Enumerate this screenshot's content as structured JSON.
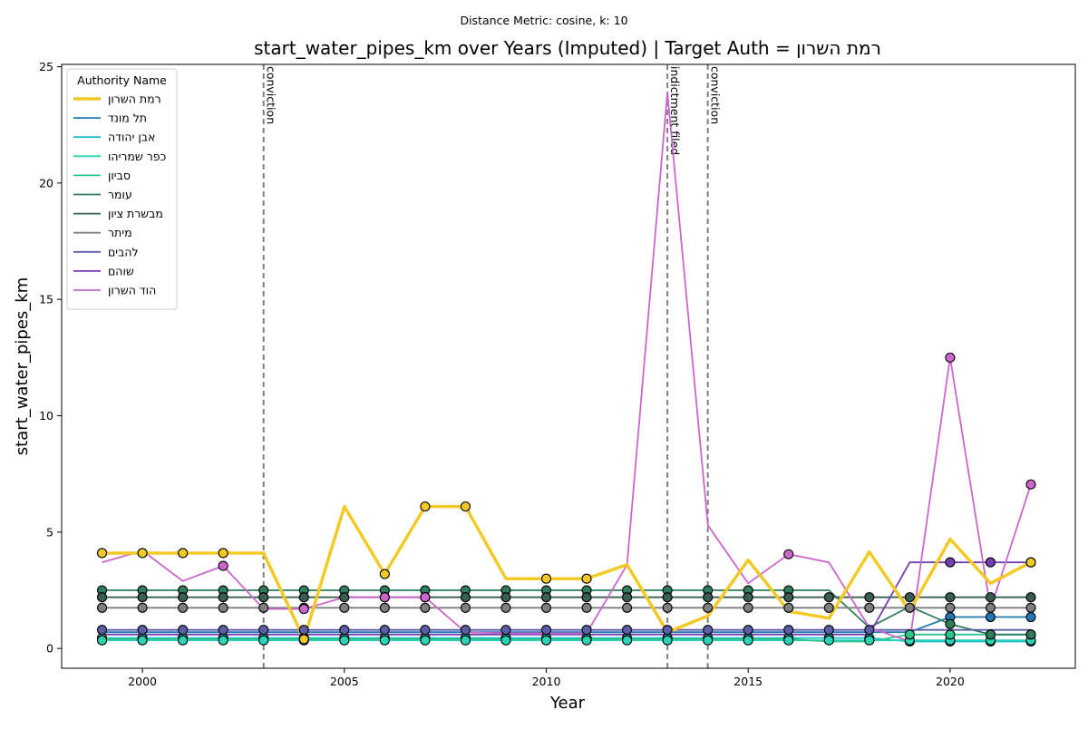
{
  "chart_data": {
    "type": "line",
    "supertitle": "Distance Metric: cosine, k: 10",
    "title": "start_water_pipes_km over Years (Imputed) | Target Auth = רמת השרון",
    "xlabel": "Year",
    "ylabel": "start_water_pipes_km",
    "xlim": [
      1998,
      2023.1
    ],
    "ylim": [
      -0.85,
      25.1
    ],
    "xticks": [
      2000,
      2005,
      2010,
      2015,
      2020
    ],
    "yticks": [
      0,
      5,
      10,
      15,
      20,
      25
    ],
    "grid": false,
    "legend": {
      "title": "Authority Name",
      "position": "upper left"
    },
    "x": [
      1999,
      2000,
      2001,
      2002,
      2003,
      2004,
      2005,
      2006,
      2007,
      2008,
      2009,
      2010,
      2011,
      2012,
      2013,
      2014,
      2015,
      2016,
      2017,
      2018,
      2019,
      2020,
      2021,
      2022
    ],
    "events": [
      {
        "x": 2003,
        "label": "conviction"
      },
      {
        "x": 2013,
        "label": "indictment filed"
      },
      {
        "x": 2014,
        "label": "conviction"
      }
    ],
    "series": [
      {
        "name": "רמת השרון",
        "color": "#f2c925",
        "target": true,
        "values": [
          4.1,
          4.1,
          4.1,
          4.1,
          4.1,
          0.4,
          6.1,
          3.2,
          6.1,
          6.1,
          3.0,
          3.0,
          3.0,
          3.6,
          0.7,
          1.4,
          3.8,
          1.6,
          1.3,
          4.15,
          1.6,
          4.7,
          2.8,
          3.7
        ],
        "markers": [
          1999,
          2000,
          2001,
          2002,
          2004,
          2006,
          2007,
          2008,
          2010,
          2011,
          2022
        ]
      },
      {
        "name": "תל מונד",
        "color": "#1f77b4",
        "values": [
          0.7,
          0.7,
          0.7,
          0.7,
          0.7,
          0.7,
          0.7,
          0.7,
          0.7,
          0.7,
          0.7,
          0.7,
          0.7,
          0.7,
          0.7,
          0.7,
          0.7,
          0.7,
          0.7,
          0.7,
          0.7,
          1.35,
          1.35,
          1.35
        ],
        "markers": [
          2020,
          2021,
          2022
        ]
      },
      {
        "name": "אבן יהודה",
        "color": "#17becf",
        "values": [
          0.45,
          0.45,
          0.45,
          0.45,
          0.45,
          0.45,
          0.45,
          0.45,
          0.45,
          0.45,
          0.45,
          0.45,
          0.45,
          0.45,
          0.45,
          0.45,
          0.45,
          0.45,
          0.45,
          0.45,
          0.3,
          0.3,
          0.3,
          0.3
        ],
        "markers": [
          1999,
          2000,
          2001,
          2002,
          2003,
          2004,
          2005,
          2006,
          2007,
          2008,
          2009,
          2010,
          2011,
          2012,
          2013,
          2014,
          2015,
          2016,
          2017,
          2018,
          2019,
          2020,
          2021,
          2022
        ]
      },
      {
        "name": "כפר שמריהו",
        "color": "#2ad4b4",
        "values": [
          0.35,
          0.35,
          0.35,
          0.35,
          0.35,
          0.35,
          0.35,
          0.35,
          0.35,
          0.35,
          0.35,
          0.35,
          0.35,
          0.35,
          0.35,
          0.35,
          0.35,
          0.35,
          0.35,
          0.35,
          0.35,
          0.35,
          0.35,
          0.35
        ],
        "markers": [
          1999,
          2000,
          2001,
          2002,
          2003,
          2004,
          2005,
          2006,
          2007,
          2008,
          2009,
          2010,
          2011,
          2012,
          2013,
          2014,
          2015,
          2016,
          2017,
          2018,
          2019,
          2020,
          2021,
          2022
        ]
      },
      {
        "name": "סביון",
        "color": "#2ec48e",
        "values": [
          0.4,
          0.4,
          0.4,
          0.4,
          0.4,
          0.4,
          0.4,
          0.4,
          0.4,
          0.4,
          0.4,
          0.4,
          0.4,
          0.4,
          0.4,
          0.4,
          0.4,
          0.4,
          0.3,
          0.3,
          0.6,
          0.6,
          0.6,
          0.6
        ],
        "markers": [
          2019,
          2020,
          2021,
          2022
        ]
      },
      {
        "name": "עומר",
        "color": "#2e7d5b",
        "values": [
          2.5,
          2.5,
          2.5,
          2.5,
          2.5,
          2.5,
          2.5,
          2.5,
          2.5,
          2.5,
          2.5,
          2.5,
          2.5,
          2.5,
          2.5,
          2.5,
          2.5,
          2.5,
          2.5,
          0.9,
          1.8,
          1.05,
          0.6,
          0.6
        ],
        "markers": [
          1999,
          2000,
          2001,
          2002,
          2003,
          2004,
          2005,
          2006,
          2007,
          2008,
          2009,
          2010,
          2011,
          2012,
          2013,
          2014,
          2015,
          2016,
          2020,
          2021,
          2022
        ]
      },
      {
        "name": "מבשרת ציון",
        "color": "#3a5e50",
        "values": [
          2.2,
          2.2,
          2.2,
          2.2,
          2.2,
          2.2,
          2.2,
          2.2,
          2.2,
          2.2,
          2.2,
          2.2,
          2.2,
          2.2,
          2.2,
          2.2,
          2.2,
          2.2,
          2.2,
          2.2,
          2.2,
          2.2,
          2.2,
          2.2
        ],
        "markers": [
          1999,
          2000,
          2001,
          2002,
          2003,
          2004,
          2005,
          2006,
          2007,
          2008,
          2009,
          2010,
          2011,
          2012,
          2013,
          2014,
          2015,
          2016,
          2017,
          2018,
          2019,
          2020,
          2021,
          2022
        ]
      },
      {
        "name": "מיתר",
        "color": "#7f7f7f",
        "values": [
          1.75,
          1.75,
          1.75,
          1.75,
          1.75,
          1.75,
          1.75,
          1.75,
          1.75,
          1.75,
          1.75,
          1.75,
          1.75,
          1.75,
          1.75,
          1.75,
          1.75,
          1.75,
          1.75,
          1.75,
          1.75,
          1.75,
          1.75,
          1.75
        ],
        "markers": [
          1999,
          2000,
          2001,
          2002,
          2003,
          2004,
          2005,
          2006,
          2007,
          2008,
          2009,
          2010,
          2011,
          2012,
          2013,
          2014,
          2015,
          2016,
          2017,
          2018,
          2019,
          2020,
          2021,
          2022
        ]
      },
      {
        "name": "להבים",
        "color": "#5b5ea6",
        "values": [
          0.8,
          0.8,
          0.8,
          0.8,
          0.8,
          0.8,
          0.8,
          0.8,
          0.8,
          0.8,
          0.8,
          0.8,
          0.8,
          0.8,
          0.8,
          0.8,
          0.8,
          0.8,
          0.8,
          0.8,
          0.8,
          0.8,
          0.8,
          0.8
        ],
        "markers": [
          1999,
          2000,
          2001,
          2002,
          2003,
          2004,
          2005,
          2006,
          2007,
          2008,
          2009,
          2010,
          2011,
          2012,
          2013,
          2014,
          2015,
          2016,
          2017,
          2018
        ]
      },
      {
        "name": "שוהם",
        "color": "#7440b0",
        "values": [
          0.6,
          0.6,
          0.6,
          0.6,
          0.6,
          0.6,
          0.6,
          0.6,
          0.6,
          0.6,
          0.6,
          0.6,
          0.6,
          0.6,
          0.6,
          0.6,
          0.6,
          0.6,
          0.6,
          0.6,
          3.7,
          3.7,
          3.7,
          3.7
        ],
        "markers": [
          2020,
          2021,
          2022
        ]
      },
      {
        "name": "הוד השרון",
        "color": "#cc66cc",
        "values": [
          3.7,
          4.2,
          2.9,
          3.55,
          1.7,
          1.7,
          2.2,
          2.2,
          2.2,
          0.7,
          0.65,
          0.65,
          0.65,
          3.6,
          23.9,
          5.3,
          2.8,
          4.05,
          3.7,
          0.9,
          0.3,
          12.5,
          1.7,
          7.05
        ],
        "markers": [
          2002,
          2004,
          2006,
          2007,
          2016,
          2020,
          2022
        ]
      }
    ]
  }
}
